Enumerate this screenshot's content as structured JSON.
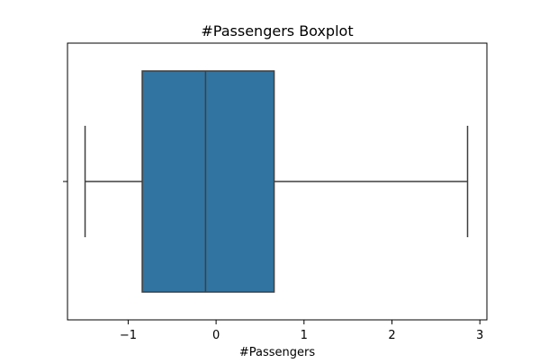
{
  "chart_data": {
    "type": "box",
    "title": "#Passengers Boxplot",
    "xlabel": "#Passengers",
    "ylabel": "",
    "orientation": "horizontal",
    "xlim": [
      -1.69,
      3.08
    ],
    "x_ticks": [
      -1,
      0,
      1,
      2,
      3
    ],
    "x_tick_labels": [
      "−1",
      "0",
      "1",
      "2",
      "3"
    ],
    "grid": false,
    "legend": "none",
    "box": {
      "whisker_low": -1.49,
      "q1": -0.84,
      "median": -0.12,
      "q3": 0.66,
      "whisker_high": 2.86
    },
    "colors": {
      "box_fill": "#3274a1",
      "line": "#3f3f3f",
      "axes": "#000000"
    }
  }
}
